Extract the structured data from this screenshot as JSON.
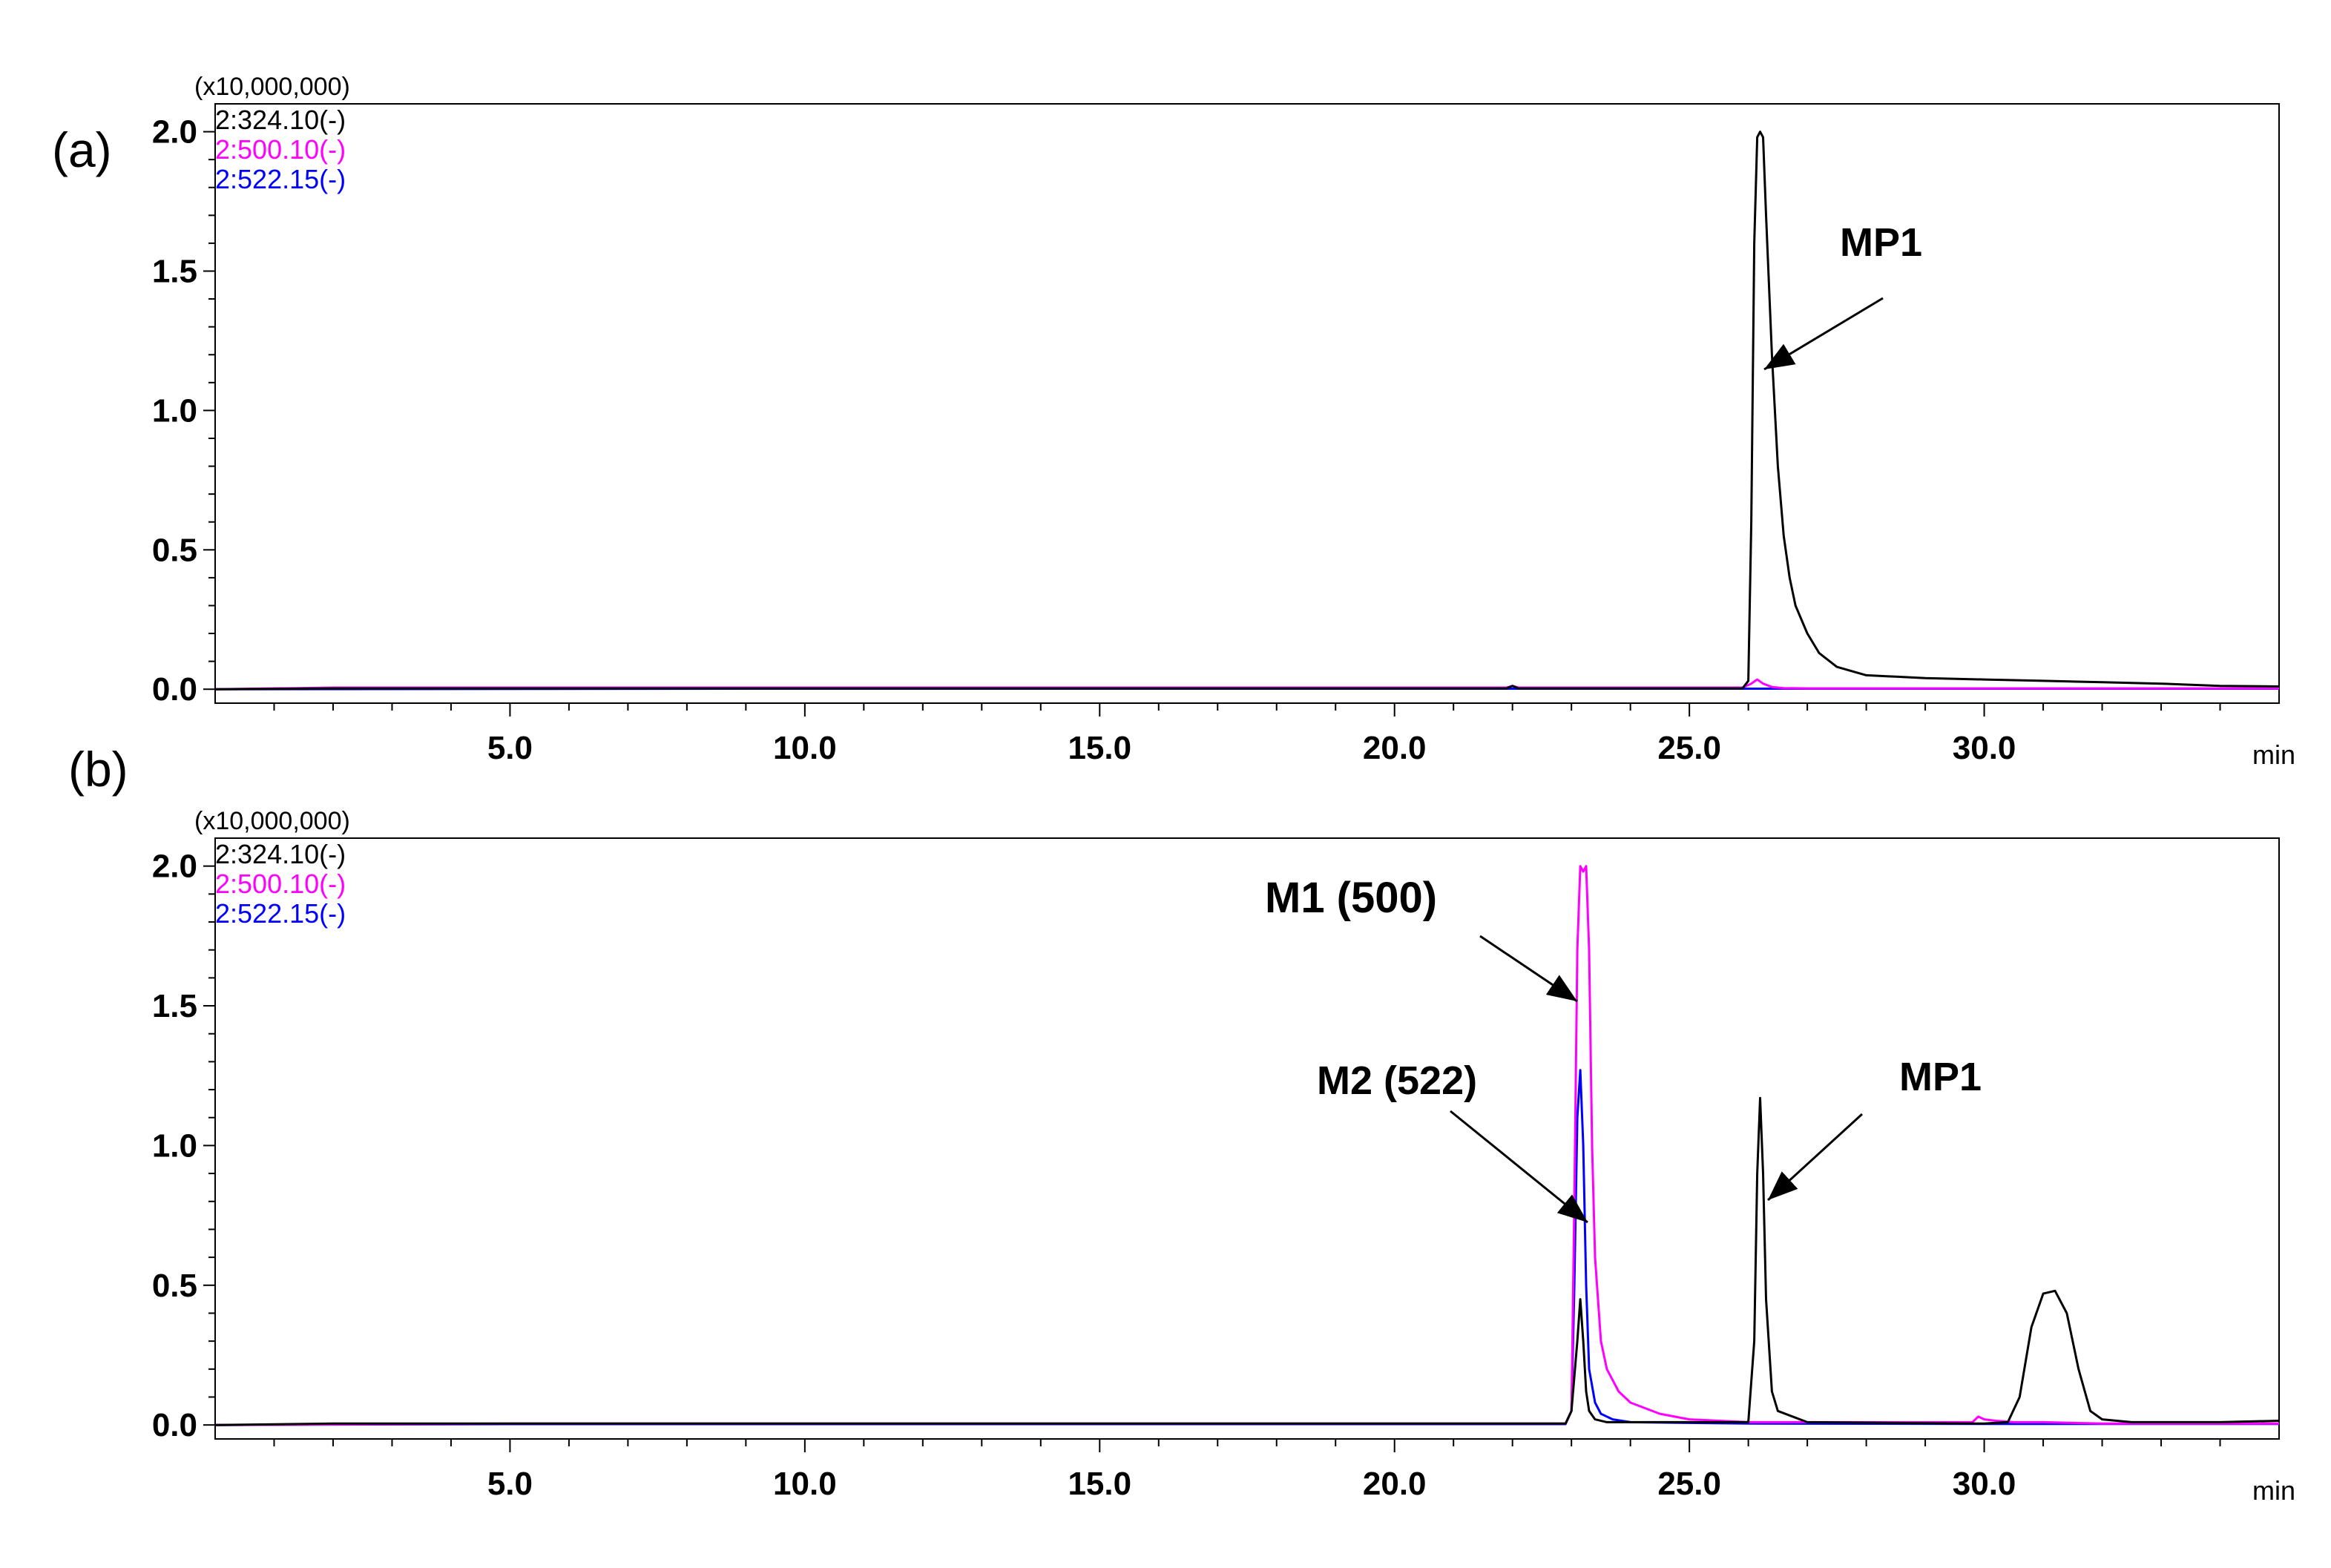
{
  "chart_data": [
    {
      "type": "line",
      "panel_label": "(a)",
      "y_scale_label": "(x10,000,000)",
      "xlabel": "min",
      "ylabel": "",
      "xlim": [
        0,
        35.0
      ],
      "ylim": [
        -0.05,
        2.1
      ],
      "x_ticks": [
        5.0,
        10.0,
        15.0,
        20.0,
        25.0,
        30.0
      ],
      "x_tick_labels": [
        "5.0",
        "10.0",
        "15.0",
        "20.0",
        "25.0",
        "30.0"
      ],
      "y_ticks": [
        0.0,
        0.5,
        1.0,
        1.5,
        2.0
      ],
      "y_tick_labels": [
        "0.0",
        "0.5",
        "1.0",
        "1.5",
        "2.0"
      ],
      "grid": false,
      "legend_position": "top-left",
      "series": [
        {
          "name": "2:324.10(-)",
          "color": "#000000",
          "x": [
            0,
            2,
            5,
            10,
            15,
            20,
            21.9,
            22.0,
            22.1,
            25.9,
            26.0,
            26.05,
            26.1,
            26.15,
            26.2,
            26.25,
            26.3,
            26.4,
            26.5,
            26.6,
            26.7,
            26.8,
            27.0,
            27.2,
            27.5,
            28.0,
            28.5,
            29,
            30,
            31,
            32,
            33,
            34,
            35
          ],
          "y": [
            0.0,
            0.003,
            0.003,
            0.003,
            0.003,
            0.003,
            0.003,
            0.012,
            0.003,
            0.003,
            0.03,
            0.6,
            1.6,
            1.98,
            2.0,
            1.98,
            1.7,
            1.2,
            0.8,
            0.55,
            0.4,
            0.3,
            0.2,
            0.13,
            0.08,
            0.05,
            0.045,
            0.04,
            0.035,
            0.03,
            0.025,
            0.02,
            0.012,
            0.01
          ]
        },
        {
          "name": "2:500.10(-)",
          "color": "#ff00ff",
          "x": [
            0,
            2,
            5,
            10,
            15,
            20,
            21.9,
            22.0,
            22.1,
            25.9,
            26.05,
            26.15,
            26.25,
            26.4,
            26.6,
            27,
            30,
            35
          ],
          "y": [
            0.0,
            0.006,
            0.006,
            0.006,
            0.006,
            0.006,
            0.006,
            0.012,
            0.006,
            0.006,
            0.02,
            0.035,
            0.02,
            0.008,
            0.004,
            0.003,
            0.003,
            0.003
          ]
        },
        {
          "name": "2:522.15(-)",
          "color": "#0000ff",
          "x": [
            0,
            10,
            20,
            26,
            35
          ],
          "y": [
            0.0,
            0.002,
            0.002,
            0.002,
            0.002
          ]
        }
      ],
      "annotations": [
        {
          "text": "MP1",
          "x": 26.2,
          "y": 1.12
        }
      ]
    },
    {
      "type": "line",
      "panel_label": "(b)",
      "y_scale_label": "(x10,000,000)",
      "xlabel": "min",
      "ylabel": "",
      "xlim": [
        0,
        35.0
      ],
      "ylim": [
        -0.05,
        2.1
      ],
      "x_ticks": [
        5.0,
        10.0,
        15.0,
        20.0,
        25.0,
        30.0
      ],
      "x_tick_labels": [
        "5.0",
        "10.0",
        "15.0",
        "20.0",
        "25.0",
        "30.0"
      ],
      "y_ticks": [
        0.0,
        0.5,
        1.0,
        1.5,
        2.0
      ],
      "y_tick_labels": [
        "0.0",
        "0.5",
        "1.0",
        "1.5",
        "2.0"
      ],
      "grid": false,
      "legend_position": "top-left",
      "series": [
        {
          "name": "2:324.10(-)",
          "color": "#000000",
          "x": [
            0,
            2,
            5,
            10,
            15,
            20,
            22.9,
            23.0,
            23.1,
            23.15,
            23.2,
            23.25,
            23.3,
            23.4,
            23.6,
            26.0,
            26.1,
            26.15,
            26.2,
            26.25,
            26.3,
            26.4,
            26.5,
            27,
            30,
            30.4,
            30.6,
            30.8,
            31.0,
            31.2,
            31.4,
            31.6,
            31.8,
            32.0,
            32.5,
            33,
            34,
            35
          ],
          "y": [
            0.0,
            0.005,
            0.005,
            0.005,
            0.005,
            0.005,
            0.005,
            0.05,
            0.3,
            0.45,
            0.3,
            0.12,
            0.05,
            0.02,
            0.01,
            0.01,
            0.3,
            0.9,
            1.17,
            0.9,
            0.45,
            0.12,
            0.05,
            0.01,
            0.005,
            0.01,
            0.1,
            0.35,
            0.47,
            0.48,
            0.4,
            0.2,
            0.05,
            0.02,
            0.01,
            0.01,
            0.01,
            0.015
          ]
        },
        {
          "name": "2:500.10(-)",
          "color": "#ff00ff",
          "x": [
            0,
            5,
            10,
            15,
            20,
            22.9,
            23.0,
            23.05,
            23.1,
            23.15,
            23.2,
            23.25,
            23.3,
            23.35,
            23.4,
            23.5,
            23.6,
            23.8,
            24.0,
            24.5,
            25.0,
            25.5,
            26,
            29.8,
            29.9,
            30.0,
            30.2,
            30.5,
            31,
            32,
            35
          ],
          "y": [
            0.0,
            0.005,
            0.005,
            0.005,
            0.005,
            0.005,
            0.05,
            0.8,
            1.7,
            2.0,
            1.98,
            2.0,
            1.7,
            1.0,
            0.6,
            0.3,
            0.2,
            0.12,
            0.08,
            0.04,
            0.02,
            0.015,
            0.01,
            0.01,
            0.03,
            0.02,
            0.015,
            0.01,
            0.01,
            0.005,
            0.005
          ]
        },
        {
          "name": "2:522.15(-)",
          "color": "#0000ff",
          "x": [
            0,
            5,
            10,
            15,
            20,
            22.9,
            23.0,
            23.05,
            23.1,
            23.15,
            23.2,
            23.25,
            23.3,
            23.4,
            23.5,
            23.7,
            24,
            26,
            30,
            32,
            35
          ],
          "y": [
            0.0,
            0.003,
            0.003,
            0.003,
            0.003,
            0.003,
            0.05,
            0.5,
            1.1,
            1.27,
            1.0,
            0.5,
            0.2,
            0.08,
            0.04,
            0.02,
            0.01,
            0.005,
            0.004,
            0.004,
            0.004
          ]
        }
      ],
      "annotations": [
        {
          "text": "M1 (500)",
          "x": 23.05,
          "y": 1.52
        },
        {
          "text": "M2 (522)",
          "x": 23.05,
          "y": 0.67
        },
        {
          "text": "MP1",
          "x": 26.2,
          "y": 0.78
        }
      ]
    }
  ]
}
